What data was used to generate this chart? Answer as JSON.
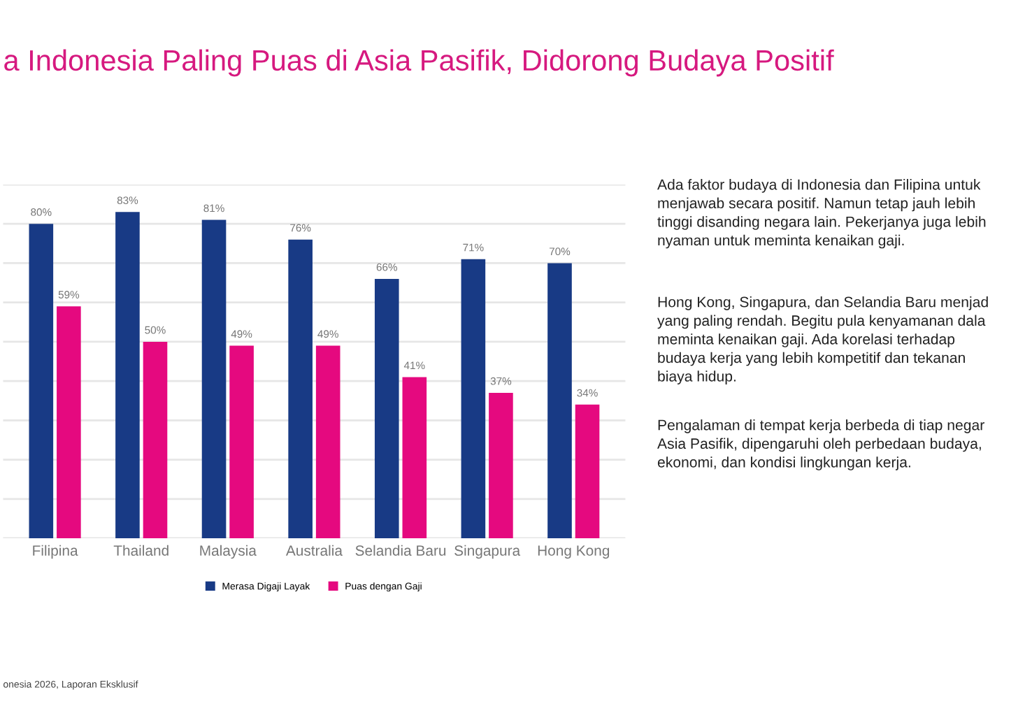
{
  "chart_data": {
    "type": "bar",
    "title": "a Indonesia Paling Puas di Asia Pasifik, Didorong Budaya Positif",
    "categories": [
      "Filipina",
      "Thailand",
      "Malaysia",
      "Australia",
      "Selandia Baru",
      "Singapura",
      "Hong Kong"
    ],
    "series": [
      {
        "name": "Merasa Digaji Layak",
        "color": "#183a85",
        "values": [
          80,
          83,
          81,
          76,
          66,
          71,
          70
        ],
        "value_labels": [
          "80%",
          "83%",
          "81%",
          "76%",
          "66%",
          "71%",
          "70%"
        ]
      },
      {
        "name": "Puas dengan Gaji",
        "color": "#e5097f",
        "values": [
          59,
          50,
          49,
          49,
          41,
          37,
          34
        ],
        "value_labels": [
          "59%",
          "50%",
          "49%",
          "49%",
          "41%",
          "37%",
          "34%"
        ]
      }
    ],
    "ylim": [
      0,
      90
    ],
    "yticks": [
      {
        "value": 0,
        "label": null
      },
      {
        "value": 10,
        "label": null
      },
      {
        "value": 20,
        "label": null
      },
      {
        "value": 30,
        "label": null
      },
      {
        "value": 40,
        "label": null
      },
      {
        "value": 50,
        "label": null
      },
      {
        "value": 60,
        "label": null
      },
      {
        "value": 70,
        "label": null
      },
      {
        "value": 80,
        "label": null
      },
      {
        "value": 90,
        "label": null
      }
    ],
    "tick_labels": "x",
    "grid": "y",
    "legend": "bottom",
    "annotations": [
      "Ada faktor budaya di Indonesia dan Filipina untuk\nmenjawab secara positif. Namun tetap jauh lebih\ntinggi disanding negara lain. Pekerjanya juga lebih\nnyaman untuk meminta kenaikan gaji.",
      "Hong Kong, Singapura, dan Selandia Baru menjad\nyang paling rendah. Begitu pula kenyamanan dala\nmeminta kenaikan gaji. Ada korelasi terhadap\nbudaya kerja yang lebih kompetitif dan tekanan\nbiaya hidup.",
      "Pengalaman di tempat kerja berbeda di tiap negar\nAsia Pasifik, dipengaruhi oleh perbedaan budaya,\nekonomi, dan kondisi lingkungan kerja.",
      "onesia 2026, Laporan Eksklusif"
    ]
  }
}
